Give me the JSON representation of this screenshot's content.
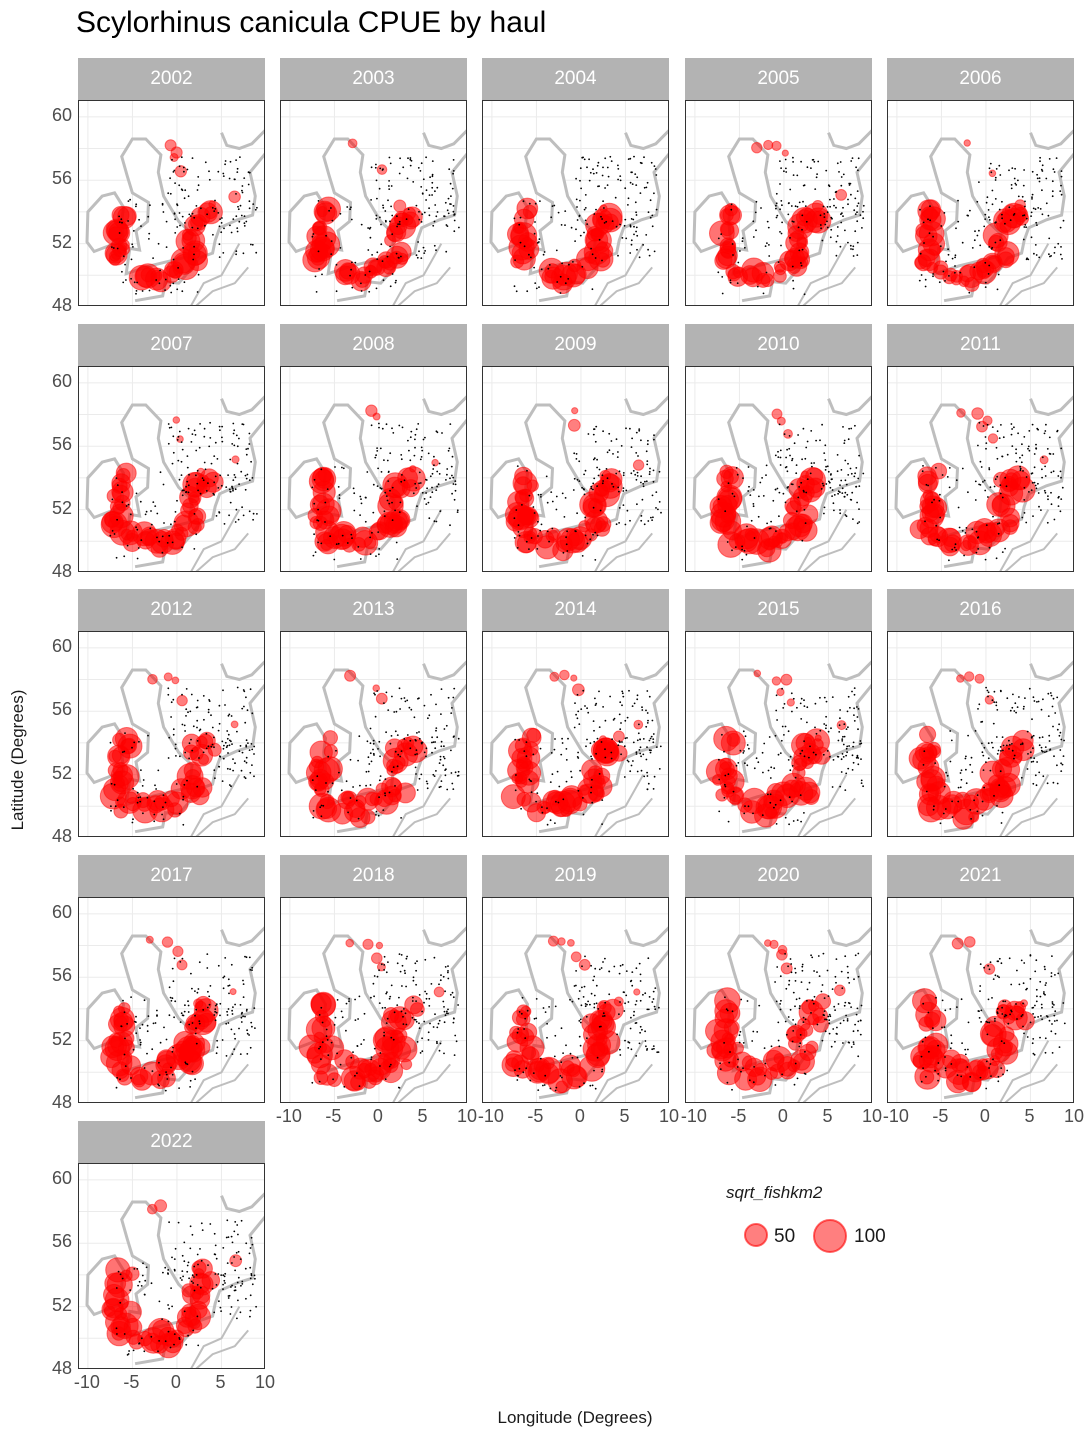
{
  "title": "Scylorhinus canicula CPUE by haul",
  "xlabel": "Longitude (Degrees)",
  "ylabel": "Latitude (Degrees)",
  "legend": {
    "title": "sqrt_fishkm2",
    "items": [
      {
        "label": "50"
      },
      {
        "label": "100"
      }
    ]
  },
  "years": [
    "2002",
    "2003",
    "2004",
    "2005",
    "2006",
    "2007",
    "2008",
    "2009",
    "2010",
    "2011",
    "2012",
    "2013",
    "2014",
    "2015",
    "2016",
    "2017",
    "2018",
    "2019",
    "2020",
    "2021",
    "2022"
  ],
  "x_ticks": [
    "-10",
    "-5",
    "0",
    "5",
    "10"
  ],
  "y_ticks": [
    "60",
    "56",
    "52",
    "48"
  ],
  "colors": {
    "strip": "#b3b3b3",
    "point": "#ff0000",
    "land": "#bebebe",
    "haul": "#000000"
  },
  "chart_data": {
    "type": "scatter",
    "title": "Scylorhinus canicula CPUE by haul",
    "xlabel": "Longitude (Degrees)",
    "ylabel": "Latitude (Degrees)",
    "xlim": [
      -11,
      10
    ],
    "ylim": [
      48,
      61
    ],
    "size_variable": "sqrt_fishkm2",
    "size_breaks": [
      50,
      100
    ],
    "facets": [
      "2002",
      "2003",
      "2004",
      "2005",
      "2006",
      "2007",
      "2008",
      "2009",
      "2010",
      "2011",
      "2012",
      "2013",
      "2014",
      "2015",
      "2016",
      "2017",
      "2018",
      "2019",
      "2020",
      "2021",
      "2022"
    ]
  }
}
